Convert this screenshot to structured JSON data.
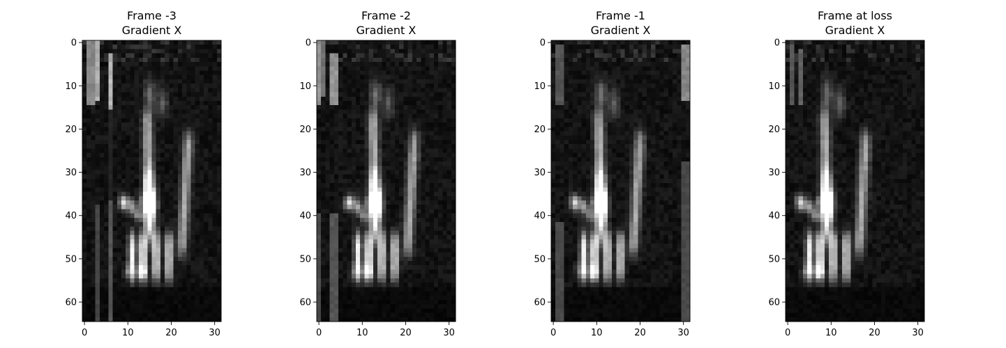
{
  "chart_data": [
    {
      "type": "heatmap",
      "title": "Frame -3\nGradient X",
      "title_lines": [
        "Frame -3",
        "Gradient X"
      ],
      "colormap": "gray",
      "image_shape": [
        65,
        32
      ],
      "xlim": [
        -0.5,
        31.5
      ],
      "ylim": [
        64.5,
        -0.5
      ],
      "x_ticks": [
        0,
        10,
        20,
        30
      ],
      "y_ticks": [
        0,
        10,
        20,
        30,
        40,
        50,
        60
      ],
      "x_tick_labels": [
        "0",
        "10",
        "20",
        "30"
      ],
      "y_tick_labels": [
        "0",
        "10",
        "20",
        "30",
        "40",
        "50",
        "60"
      ],
      "features": {
        "edge_bars": [
          {
            "col": 1.5,
            "y0": 0,
            "y1": 14,
            "value": 0.55
          },
          {
            "col": 3,
            "y0": 0,
            "y1": 13,
            "value": 0.7
          },
          {
            "col": 3,
            "y0": 38,
            "y1": 64,
            "value": 0.28
          },
          {
            "col": 6,
            "y0": 3,
            "y1": 15,
            "value": 0.75
          },
          {
            "col": 6,
            "y0": 16,
            "y1": 36,
            "value": 0.15
          },
          {
            "col": 6,
            "y0": 37,
            "y1": 64,
            "value": 0.35
          }
        ],
        "left_shift": 0,
        "right_edge": false
      }
    },
    {
      "type": "heatmap",
      "title": "Frame -2\nGradient X",
      "title_lines": [
        "Frame -2",
        "Gradient X"
      ],
      "colormap": "gray",
      "image_shape": [
        65,
        32
      ],
      "xlim": [
        -0.5,
        31.5
      ],
      "ylim": [
        64.5,
        -0.5
      ],
      "x_ticks": [
        0,
        10,
        20,
        30
      ],
      "y_ticks": [
        0,
        10,
        20,
        30,
        40,
        50,
        60
      ],
      "x_tick_labels": [
        "0",
        "10",
        "20",
        "30"
      ],
      "y_tick_labels": [
        "0",
        "10",
        "20",
        "30",
        "40",
        "50",
        "60"
      ],
      "features": {
        "edge_bars": [
          {
            "col": 0,
            "y0": 0,
            "y1": 14,
            "value": 0.6
          },
          {
            "col": 1,
            "y0": 0,
            "y1": 12,
            "value": 0.45
          },
          {
            "col": 3.5,
            "y0": 3,
            "y1": 14,
            "value": 0.6
          },
          {
            "col": 0,
            "y0": 40,
            "y1": 64,
            "value": 0.3
          },
          {
            "col": 3.5,
            "y0": 40,
            "y1": 64,
            "value": 0.35
          }
        ],
        "left_shift": -2,
        "right_edge": false
      }
    },
    {
      "type": "heatmap",
      "title": "Frame -1\nGradient X",
      "title_lines": [
        "Frame -1",
        "Gradient X"
      ],
      "colormap": "gray",
      "image_shape": [
        65,
        32
      ],
      "xlim": [
        -0.5,
        31.5
      ],
      "ylim": [
        64.5,
        -0.5
      ],
      "x_ticks": [
        0,
        10,
        20,
        30
      ],
      "y_ticks": [
        0,
        10,
        20,
        30,
        40,
        50,
        60
      ],
      "x_tick_labels": [
        "0",
        "10",
        "20",
        "30"
      ],
      "y_tick_labels": [
        "0",
        "10",
        "20",
        "30",
        "40",
        "50",
        "60"
      ],
      "features": {
        "edge_bars": [
          {
            "col": 1.5,
            "y0": 1,
            "y1": 14,
            "value": 0.35
          },
          {
            "col": 1.5,
            "y0": 42,
            "y1": 64,
            "value": 0.3
          },
          {
            "col": 30.5,
            "y0": 1,
            "y1": 13,
            "value": 0.55
          },
          {
            "col": 30.5,
            "y0": 28,
            "y1": 64,
            "value": 0.3
          }
        ],
        "left_shift": -4,
        "right_edge": true
      }
    },
    {
      "type": "heatmap",
      "title": "Frame at loss\nGradient X",
      "title_lines": [
        "Frame at loss",
        "Gradient X"
      ],
      "colormap": "gray",
      "image_shape": [
        65,
        32
      ],
      "xlim": [
        -0.5,
        31.5
      ],
      "ylim": [
        64.5,
        -0.5
      ],
      "x_ticks": [
        0,
        10,
        20,
        30
      ],
      "y_ticks": [
        0,
        10,
        20,
        30,
        40,
        50,
        60
      ],
      "x_tick_labels": [
        "0",
        "10",
        "20",
        "30"
      ],
      "y_tick_labels": [
        "0",
        "10",
        "20",
        "30",
        "40",
        "50",
        "60"
      ],
      "features": {
        "edge_bars": [
          {
            "col": 1,
            "y0": 1,
            "y1": 14,
            "value": 0.35
          },
          {
            "col": 3,
            "y0": 2,
            "y1": 14,
            "value": 0.4
          }
        ],
        "left_shift": -6,
        "right_edge": false
      }
    }
  ]
}
